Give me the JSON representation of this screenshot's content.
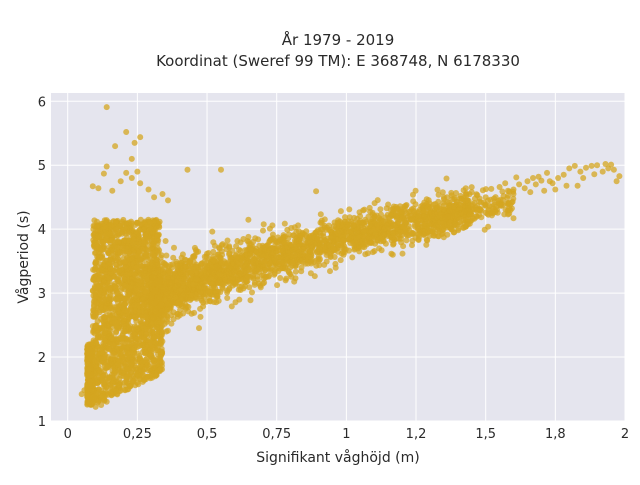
{
  "chart_data": {
    "type": "scatter",
    "title_line1": "År 1979 - 2019",
    "title_line2": "Koordinat (Sweref 99 TM): E 368748, N 6178330",
    "xlabel": "Signifikant våghöjd (m)",
    "ylabel": "Vågperiod (s)",
    "xlim": [
      -0.06,
      2.0
    ],
    "ylim": [
      1.0,
      6.13
    ],
    "x_ticks": [
      {
        "value": 0,
        "label": "0"
      },
      {
        "value": 0.25,
        "label": "0,25"
      },
      {
        "value": 0.5,
        "label": "0,5"
      },
      {
        "value": 0.75,
        "label": "0,75"
      },
      {
        "value": 1,
        "label": "1"
      },
      {
        "value": 1.25,
        "label": "1,2"
      },
      {
        "value": 1.5,
        "label": "1,5"
      },
      {
        "value": 1.75,
        "label": "1,8"
      },
      {
        "value": 2,
        "label": "2"
      }
    ],
    "y_ticks": [
      {
        "value": 1,
        "label": "1"
      },
      {
        "value": 2,
        "label": "2"
      },
      {
        "value": 3,
        "label": "3"
      },
      {
        "value": 4,
        "label": "4"
      },
      {
        "value": 5,
        "label": "5"
      },
      {
        "value": 6,
        "label": "6"
      }
    ],
    "grid": true,
    "legend": "none",
    "background_color": "#e5e5ee",
    "grid_color": "#ffffff",
    "marker_color": "#d4a520",
    "series": [
      {
        "points": [
          [
            0.14,
            5.91
          ],
          [
            0.21,
            5.52
          ],
          [
            0.26,
            5.44
          ],
          [
            0.17,
            5.3
          ],
          [
            0.24,
            5.35
          ],
          [
            0.23,
            5.1
          ],
          [
            0.14,
            4.98
          ],
          [
            0.13,
            4.87
          ],
          [
            0.21,
            4.88
          ],
          [
            0.25,
            4.9
          ],
          [
            0.23,
            4.8
          ],
          [
            0.19,
            4.75
          ],
          [
            0.09,
            4.67
          ],
          [
            0.11,
            4.64
          ],
          [
            0.26,
            4.72
          ],
          [
            0.29,
            4.62
          ],
          [
            0.34,
            4.55
          ],
          [
            0.43,
            4.93
          ],
          [
            0.55,
            4.93
          ],
          [
            0.16,
            4.6
          ],
          [
            0.31,
            4.5
          ],
          [
            0.36,
            4.45
          ],
          [
            0.05,
            1.42
          ],
          [
            0.07,
            1.4
          ],
          [
            0.06,
            1.48
          ],
          [
            0.08,
            1.55
          ],
          [
            0.09,
            1.28
          ],
          [
            0.1,
            1.22
          ],
          [
            0.12,
            1.25
          ],
          [
            0.14,
            1.3
          ],
          [
            0.08,
            1.62
          ],
          [
            0.07,
            1.5
          ],
          [
            0.11,
            1.7
          ],
          [
            0.1,
            1.35
          ],
          [
            1.43,
            4.56
          ],
          [
            1.45,
            4.58
          ],
          [
            1.47,
            4.53
          ],
          [
            1.5,
            4.5
          ],
          [
            1.52,
            4.63
          ],
          [
            1.55,
            4.66
          ],
          [
            1.56,
            4.59
          ],
          [
            1.58,
            4.6
          ],
          [
            1.6,
            4.62
          ],
          [
            1.62,
            4.7
          ],
          [
            1.65,
            4.75
          ],
          [
            1.67,
            4.8
          ],
          [
            1.69,
            4.82
          ],
          [
            1.7,
            4.76
          ],
          [
            1.72,
            4.88
          ],
          [
            1.74,
            4.72
          ],
          [
            1.76,
            4.8
          ],
          [
            1.78,
            4.85
          ],
          [
            1.8,
            4.95
          ],
          [
            1.82,
            4.99
          ],
          [
            1.84,
            4.9
          ],
          [
            1.86,
            4.96
          ],
          [
            1.88,
            4.99
          ],
          [
            1.9,
            5.0
          ],
          [
            1.92,
            4.9
          ],
          [
            1.93,
            5.02
          ],
          [
            1.95,
            5.01
          ],
          [
            1.96,
            4.93
          ],
          [
            1.97,
            4.75
          ],
          [
            1.98,
            4.83
          ],
          [
            1.83,
            4.68
          ],
          [
            1.75,
            4.62
          ],
          [
            1.68,
            4.7
          ],
          [
            1.6,
            4.55
          ],
          [
            1.64,
            4.64
          ],
          [
            1.71,
            4.6
          ],
          [
            1.53,
            4.48
          ],
          [
            1.41,
            4.52
          ],
          [
            1.38,
            4.47
          ],
          [
            1.35,
            4.5
          ],
          [
            1.33,
            4.43
          ],
          [
            1.46,
            4.41
          ],
          [
            1.49,
            4.61
          ],
          [
            1.57,
            4.72
          ],
          [
            1.61,
            4.81
          ],
          [
            1.66,
            4.58
          ],
          [
            1.73,
            4.75
          ],
          [
            1.79,
            4.68
          ],
          [
            1.85,
            4.8
          ],
          [
            1.89,
            4.86
          ],
          [
            1.94,
            4.95
          ]
        ]
      }
    ]
  }
}
